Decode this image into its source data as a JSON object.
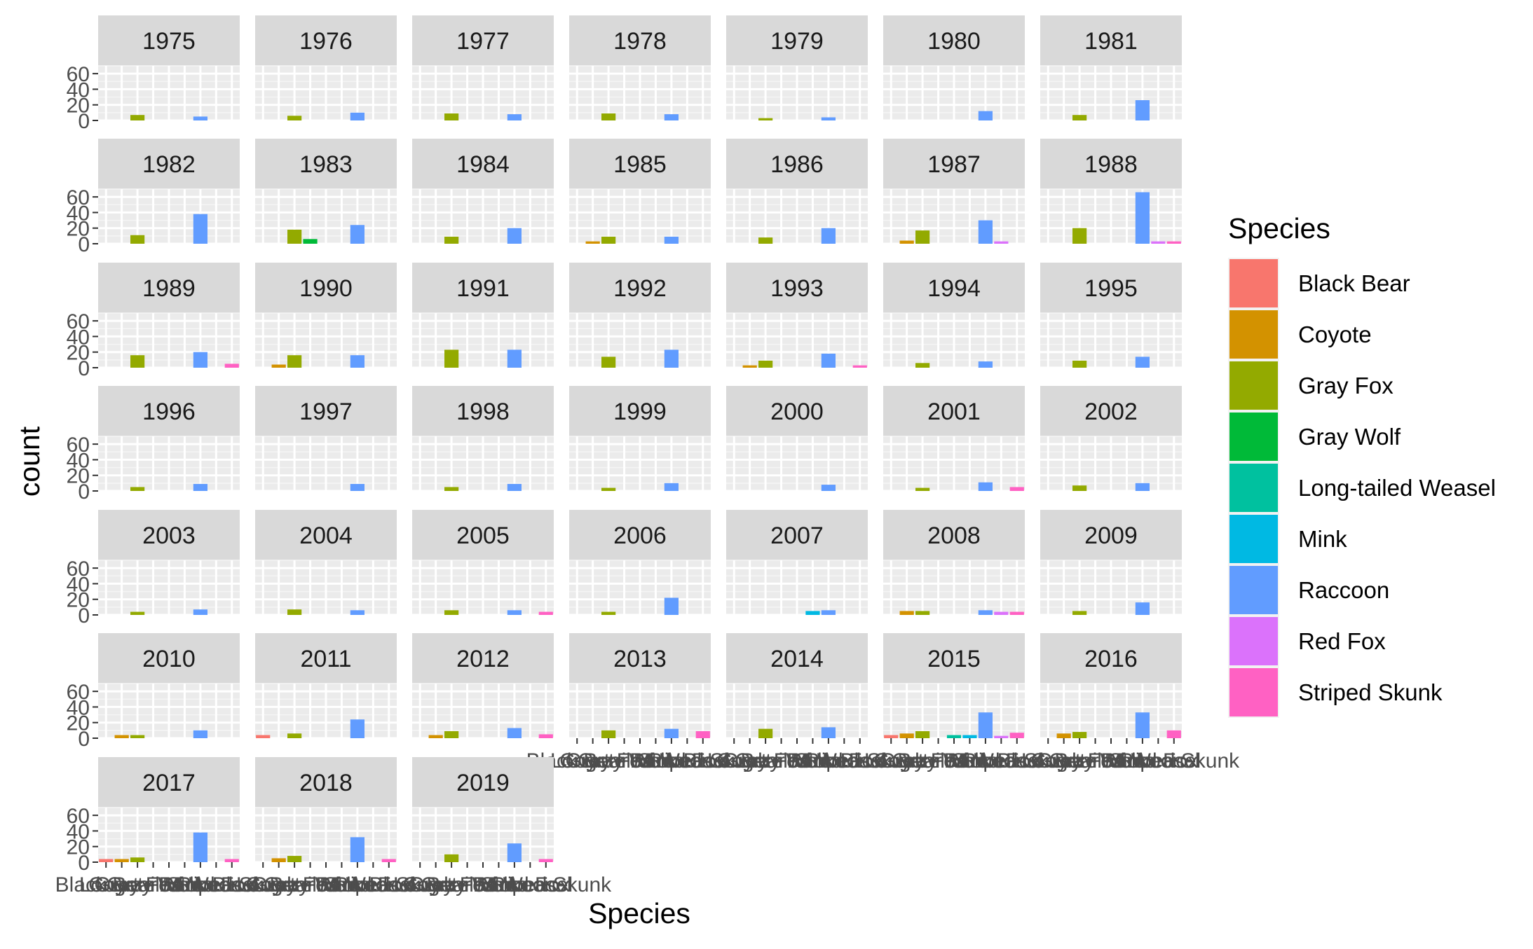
{
  "chart_data": {
    "type": "bar",
    "facet_variable": "year",
    "xlabel": "Species",
    "ylabel": "count",
    "ylim": [
      0,
      70
    ],
    "y_ticks": [
      0,
      20,
      40,
      60
    ],
    "grid": true,
    "legend": {
      "title": "Species",
      "placement": "right",
      "items": [
        {
          "name": "Black Bear",
          "color": "#F8766D"
        },
        {
          "name": "Coyote",
          "color": "#D39200"
        },
        {
          "name": "Gray Fox",
          "color": "#93AA00"
        },
        {
          "name": "Gray Wolf",
          "color": "#00BA38"
        },
        {
          "name": "Long-tailed Weasel",
          "color": "#00C19F"
        },
        {
          "name": "Mink",
          "color": "#00B9E3"
        },
        {
          "name": "Raccoon",
          "color": "#619CFF"
        },
        {
          "name": "Red Fox",
          "color": "#DB72FB"
        },
        {
          "name": "Striped Skunk",
          "color": "#FF61C3"
        }
      ]
    },
    "categories": [
      "Black Bear",
      "Coyote",
      "Gray Fox",
      "Gray Wolf",
      "Long-tailed Weasel",
      "Mink",
      "Raccoon",
      "Red Fox",
      "Striped Skunk"
    ],
    "panels": [
      {
        "year": "1975",
        "values": [
          0,
          0,
          7,
          0,
          0,
          0,
          5,
          0,
          0
        ]
      },
      {
        "year": "1976",
        "values": [
          0,
          0,
          6,
          0,
          0,
          0,
          10,
          0,
          0
        ]
      },
      {
        "year": "1977",
        "values": [
          0,
          0,
          9,
          0,
          0,
          0,
          8,
          0,
          0
        ]
      },
      {
        "year": "1978",
        "values": [
          0,
          0,
          9,
          0,
          0,
          0,
          8,
          0,
          0
        ]
      },
      {
        "year": "1979",
        "values": [
          0,
          0,
          3,
          0,
          0,
          0,
          4,
          0,
          0
        ]
      },
      {
        "year": "1980",
        "values": [
          0,
          0,
          0,
          0,
          0,
          0,
          12,
          0,
          0
        ]
      },
      {
        "year": "1981",
        "values": [
          0,
          0,
          7,
          0,
          0,
          0,
          26,
          0,
          0
        ]
      },
      {
        "year": "1982",
        "values": [
          0,
          0,
          11,
          0,
          0,
          0,
          38,
          0,
          0
        ]
      },
      {
        "year": "1983",
        "values": [
          0,
          0,
          18,
          6,
          0,
          0,
          24,
          0,
          0
        ]
      },
      {
        "year": "1984",
        "values": [
          0,
          0,
          9,
          0,
          0,
          0,
          20,
          0,
          0
        ]
      },
      {
        "year": "1985",
        "values": [
          0,
          3,
          9,
          0,
          0,
          0,
          9,
          0,
          0
        ]
      },
      {
        "year": "1986",
        "values": [
          0,
          0,
          8,
          0,
          0,
          0,
          20,
          0,
          0
        ]
      },
      {
        "year": "1987",
        "values": [
          0,
          4,
          17,
          0,
          0,
          0,
          30,
          3,
          0
        ]
      },
      {
        "year": "1988",
        "values": [
          0,
          0,
          20,
          0,
          0,
          0,
          66,
          3,
          3
        ]
      },
      {
        "year": "1989",
        "values": [
          0,
          0,
          16,
          0,
          0,
          0,
          20,
          0,
          5
        ]
      },
      {
        "year": "1990",
        "values": [
          0,
          4,
          16,
          0,
          0,
          0,
          16,
          0,
          0
        ]
      },
      {
        "year": "1991",
        "values": [
          0,
          0,
          23,
          0,
          0,
          0,
          23,
          0,
          0
        ]
      },
      {
        "year": "1992",
        "values": [
          0,
          0,
          14,
          0,
          0,
          0,
          23,
          0,
          0
        ]
      },
      {
        "year": "1993",
        "values": [
          0,
          3,
          9,
          0,
          0,
          0,
          18,
          0,
          3
        ]
      },
      {
        "year": "1994",
        "values": [
          0,
          0,
          6,
          0,
          0,
          0,
          8,
          0,
          0
        ]
      },
      {
        "year": "1995",
        "values": [
          0,
          0,
          9,
          0,
          0,
          0,
          14,
          0,
          0
        ]
      },
      {
        "year": "1996",
        "values": [
          0,
          0,
          5,
          0,
          0,
          0,
          9,
          0,
          0
        ]
      },
      {
        "year": "1997",
        "values": [
          0,
          0,
          0,
          0,
          0,
          0,
          9,
          0,
          0
        ]
      },
      {
        "year": "1998",
        "values": [
          0,
          0,
          5,
          0,
          0,
          0,
          9,
          0,
          0
        ]
      },
      {
        "year": "1999",
        "values": [
          0,
          0,
          4,
          0,
          0,
          0,
          10,
          0,
          0
        ]
      },
      {
        "year": "2000",
        "values": [
          0,
          0,
          0,
          0,
          0,
          0,
          8,
          0,
          0
        ]
      },
      {
        "year": "2001",
        "values": [
          0,
          0,
          4,
          0,
          0,
          0,
          11,
          0,
          5
        ]
      },
      {
        "year": "2002",
        "values": [
          0,
          0,
          7,
          0,
          0,
          0,
          10,
          0,
          0
        ]
      },
      {
        "year": "2003",
        "values": [
          0,
          0,
          4,
          0,
          0,
          0,
          7,
          0,
          0
        ]
      },
      {
        "year": "2004",
        "values": [
          0,
          0,
          7,
          0,
          0,
          0,
          6,
          0,
          0
        ]
      },
      {
        "year": "2005",
        "values": [
          0,
          0,
          6,
          0,
          0,
          0,
          6,
          0,
          4
        ]
      },
      {
        "year": "2006",
        "values": [
          0,
          0,
          4,
          0,
          0,
          0,
          22,
          0,
          0
        ]
      },
      {
        "year": "2007",
        "values": [
          0,
          0,
          0,
          0,
          0,
          5,
          6,
          0,
          0
        ]
      },
      {
        "year": "2008",
        "values": [
          0,
          5,
          5,
          0,
          0,
          0,
          6,
          4,
          4
        ]
      },
      {
        "year": "2009",
        "values": [
          0,
          0,
          5,
          0,
          0,
          0,
          16,
          0,
          0
        ]
      },
      {
        "year": "2010",
        "values": [
          0,
          4,
          4,
          0,
          0,
          0,
          10,
          0,
          0
        ]
      },
      {
        "year": "2011",
        "values": [
          4,
          0,
          6,
          0,
          0,
          0,
          24,
          0,
          0
        ]
      },
      {
        "year": "2012",
        "values": [
          0,
          4,
          9,
          0,
          0,
          0,
          13,
          0,
          5
        ]
      },
      {
        "year": "2013",
        "values": [
          0,
          0,
          10,
          0,
          0,
          0,
          12,
          0,
          9
        ]
      },
      {
        "year": "2014",
        "values": [
          0,
          0,
          12,
          0,
          0,
          0,
          14,
          0,
          0
        ]
      },
      {
        "year": "2015",
        "values": [
          4,
          6,
          9,
          0,
          4,
          4,
          33,
          3,
          7
        ]
      },
      {
        "year": "2016",
        "values": [
          0,
          6,
          8,
          0,
          0,
          0,
          33,
          0,
          10
        ]
      },
      {
        "year": "2017",
        "values": [
          4,
          4,
          6,
          0,
          0,
          0,
          38,
          0,
          4
        ]
      },
      {
        "year": "2018",
        "values": [
          0,
          5,
          8,
          0,
          0,
          0,
          32,
          0,
          4
        ]
      },
      {
        "year": "2019",
        "values": [
          0,
          0,
          10,
          0,
          0,
          0,
          24,
          0,
          4
        ]
      }
    ]
  }
}
